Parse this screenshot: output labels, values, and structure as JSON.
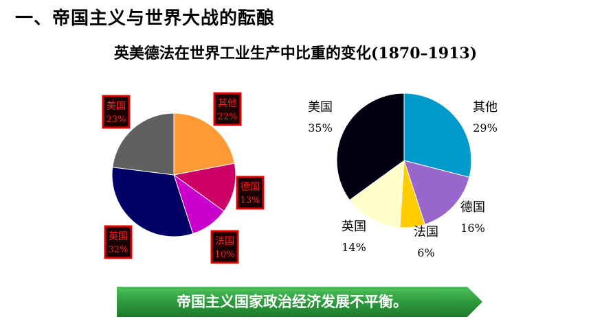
{
  "page": {
    "heading": "一、帝国主义与世界大战的酝酿",
    "subtitle": "英美德法在世界工业生产中比重的变化(1870–1913)",
    "banner": "帝国主义国家政治经济发展不平衡。"
  },
  "colors": {
    "banner_green": "#2e9b3e",
    "label_box_red": "#e00000",
    "label_box_text": "#ff2020"
  },
  "chart_data": [
    {
      "type": "pie",
      "label_style": "red-boxed",
      "slices": [
        {
          "label": "其他",
          "value": 22,
          "pct": "22%",
          "color": "#ff9933"
        },
        {
          "label": "德国",
          "value": 13,
          "pct": "13%",
          "color": "#cc0066"
        },
        {
          "label": "法国",
          "value": 10,
          "pct": "10%",
          "color": "#cc00cc"
        },
        {
          "label": "英国",
          "value": 32,
          "pct": "32%",
          "color": "#000066"
        },
        {
          "label": "美国",
          "value": 23,
          "pct": "23%",
          "color": "#606060"
        }
      ]
    },
    {
      "type": "pie",
      "label_style": "plain",
      "slices": [
        {
          "label": "其他",
          "value": 29,
          "pct": "29%",
          "color": "#0099cc"
        },
        {
          "label": "德国",
          "value": 16,
          "pct": "16%",
          "color": "#9966cc"
        },
        {
          "label": "法国",
          "value": 6,
          "pct": "6%",
          "color": "#ffcc00"
        },
        {
          "label": "英国",
          "value": 14,
          "pct": "14%",
          "color": "#ffffcc"
        },
        {
          "label": "美国",
          "value": 35,
          "pct": "35%",
          "color": "#000011"
        }
      ]
    }
  ]
}
